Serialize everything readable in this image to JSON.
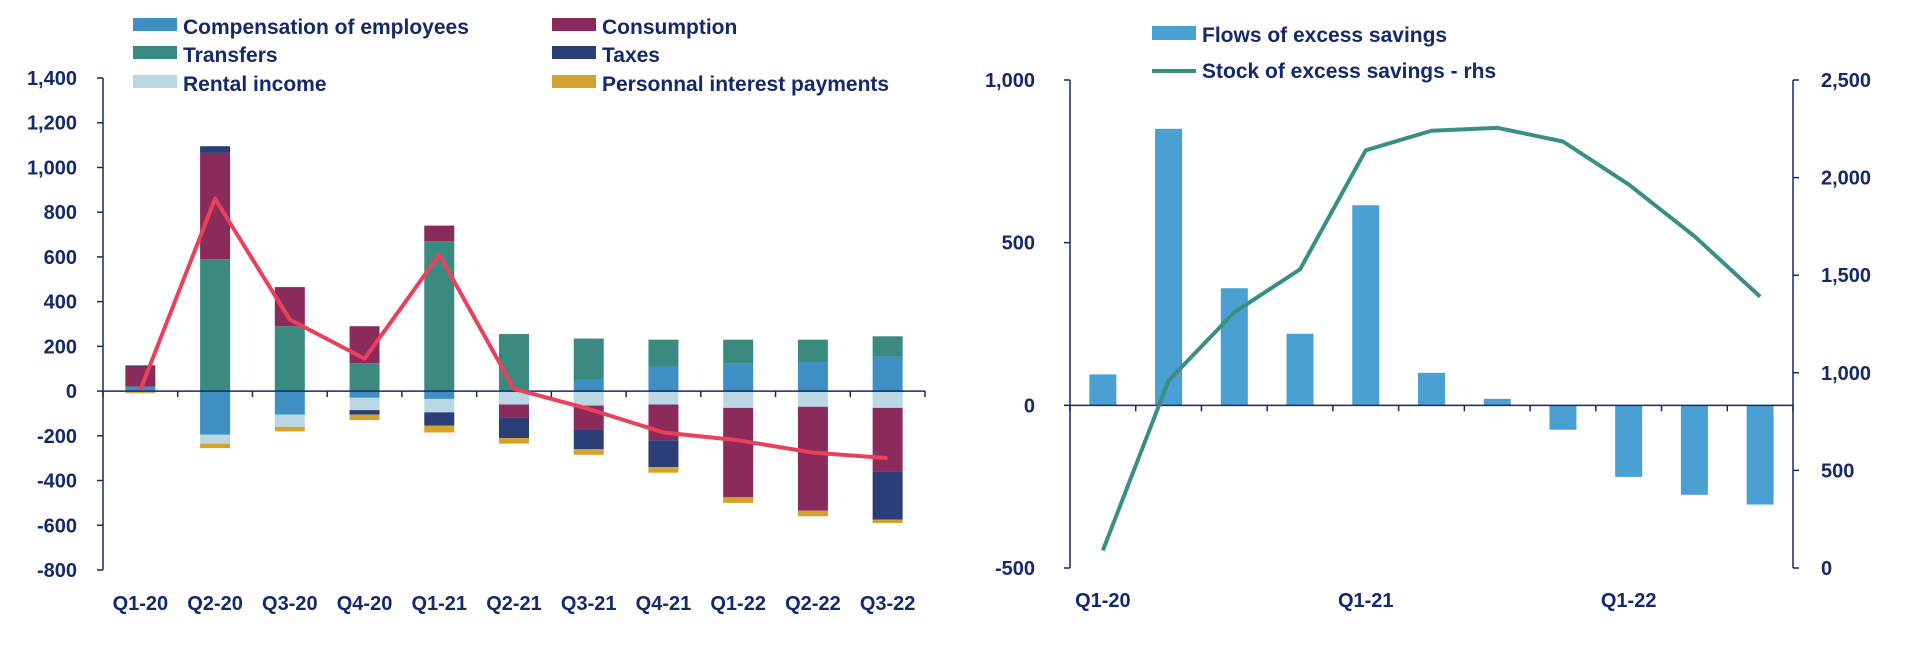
{
  "chart_data": [
    {
      "type": "bar",
      "stacked": true,
      "categories": [
        "Q1-20",
        "Q2-20",
        "Q3-20",
        "Q4-20",
        "Q1-21",
        "Q2-21",
        "Q3-21",
        "Q4-21",
        "Q1-22",
        "Q2-22",
        "Q3-22"
      ],
      "ylim": [
        -800,
        1400
      ],
      "yticks": [
        "1,400",
        "1,200",
        "1,000",
        "800",
        "600",
        "400",
        "200",
        "0",
        "-200",
        "-400",
        "-600",
        "-800"
      ],
      "ytick_values": [
        1400,
        1200,
        1000,
        800,
        600,
        400,
        200,
        0,
        -200,
        -400,
        -600,
        -800
      ],
      "legend_position": "top",
      "series": [
        {
          "name": "Compensation of employees",
          "color": "#3f8fc4",
          "values": [
            20,
            -195,
            -105,
            -30,
            -35,
            0,
            50,
            110,
            125,
            130,
            155
          ]
        },
        {
          "name": "Transfers",
          "color": "#3a8a80",
          "values": [
            0,
            590,
            290,
            125,
            670,
            255,
            185,
            120,
            105,
            100,
            90
          ]
        },
        {
          "name": "Rental income",
          "color": "#b9d8e4",
          "values": [
            -5,
            -40,
            -55,
            -55,
            -60,
            -60,
            -65,
            -60,
            -75,
            -70,
            -75
          ]
        },
        {
          "name": "Consumption",
          "color": "#8b2b5c",
          "values": [
            90,
            475,
            175,
            165,
            70,
            -60,
            -105,
            -160,
            -400,
            -465,
            -285
          ]
        },
        {
          "name": "Taxes",
          "color": "#2c3e78",
          "values": [
            5,
            30,
            0,
            -20,
            -60,
            -90,
            -90,
            -120,
            0,
            0,
            -215
          ]
        },
        {
          "name": "Personnal interest payments",
          "color": "#d6a22e",
          "values": [
            -5,
            -20,
            -20,
            -25,
            -30,
            -25,
            -25,
            -25,
            -25,
            -25,
            -15
          ]
        }
      ],
      "line": {
        "name": "",
        "color": "#e8415a",
        "values": [
          5,
          860,
          320,
          145,
          610,
          10,
          -80,
          -185,
          -220,
          -275,
          -300
        ]
      }
    },
    {
      "type": "bar",
      "categories": [
        "Q1-20",
        "Q2-20",
        "Q3-20",
        "Q4-20",
        "Q1-21",
        "Q2-21",
        "Q3-21",
        "Q4-21",
        "Q1-22",
        "Q2-22",
        "Q3-22"
      ],
      "xtick_labels": [
        "Q1-20",
        "",
        "",
        "",
        "Q1-21",
        "",
        "",
        "",
        "Q1-22",
        "",
        ""
      ],
      "ylim": [
        -500,
        1000
      ],
      "yticks": [
        "1,000",
        "500",
        "0",
        "-500"
      ],
      "ytick_values": [
        1000,
        500,
        0,
        -500
      ],
      "y2lim": [
        0,
        2500
      ],
      "y2ticks": [
        "2,500",
        "2,000",
        "1,500",
        "1,000",
        "500",
        "0"
      ],
      "y2tick_values": [
        2500,
        2000,
        1500,
        1000,
        500,
        0
      ],
      "legend_position": "top",
      "series": [
        {
          "name": "Flows of excess savings",
          "color": "#4aa0d2",
          "values": [
            95,
            850,
            360,
            220,
            615,
            100,
            20,
            -75,
            -220,
            -275,
            -305
          ]
        }
      ],
      "line": {
        "name": "Stock of excess savings - rhs",
        "color": "#3a8f85",
        "axis": "rhs",
        "values": [
          90,
          960,
          1310,
          1530,
          2140,
          2240,
          2255,
          2185,
          1965,
          1700,
          1390
        ]
      }
    }
  ]
}
